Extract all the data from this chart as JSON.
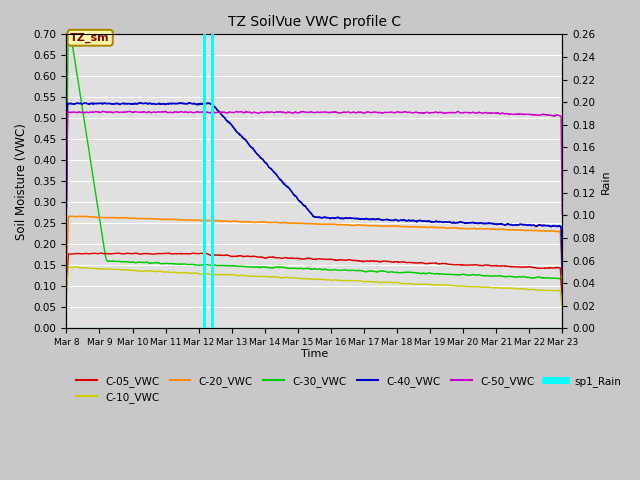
{
  "title": "TZ SoilVue VWC profile C",
  "xlabel": "Time",
  "ylabel_left": "Soil Moisture (VWC)",
  "ylabel_right": "Rain",
  "ylim_left": [
    0.0,
    0.7
  ],
  "ylim_right": [
    0.0,
    0.26
  ],
  "fig_bg_color": "#c8c8c8",
  "plot_bg_color": "#e0e0e0",
  "rain_color": "#00ffff",
  "rain_bar1_day": 4.18,
  "rain_bar2_day": 4.42,
  "rain_bar_width": 0.1,
  "rain_bar_height": 0.26,
  "annotation_text": "TZ_sm",
  "series": {
    "C-05_VWC": {
      "color": "#dd0000",
      "lw": 1.0
    },
    "C-10_VWC": {
      "color": "#cccc00",
      "lw": 1.0
    },
    "C-20_VWC": {
      "color": "#ff8c00",
      "lw": 1.2
    },
    "C-30_VWC": {
      "color": "#00cc00",
      "lw": 1.0
    },
    "C-40_VWC": {
      "color": "#0000cc",
      "lw": 1.2
    },
    "C-50_VWC": {
      "color": "#cc00cc",
      "lw": 1.0
    }
  },
  "xtick_labels": [
    "Mar 8",
    "Mar 9",
    "Mar 10",
    "Mar 11",
    "Mar 12",
    "Mar 13",
    "Mar 14",
    "Mar 15",
    "Mar 16",
    "Mar 17",
    "Mar 18",
    "Mar 19",
    "Mar 20",
    "Mar 21",
    "Mar 22",
    "Mar 23"
  ],
  "ytick_left": [
    0.0,
    0.05,
    0.1,
    0.15,
    0.2,
    0.25,
    0.3,
    0.35,
    0.4,
    0.45,
    0.5,
    0.55,
    0.6,
    0.65,
    0.7
  ],
  "ytick_right": [
    0.0,
    0.02,
    0.04,
    0.06,
    0.08,
    0.1,
    0.12,
    0.14,
    0.16,
    0.18,
    0.2,
    0.22,
    0.24,
    0.26
  ]
}
